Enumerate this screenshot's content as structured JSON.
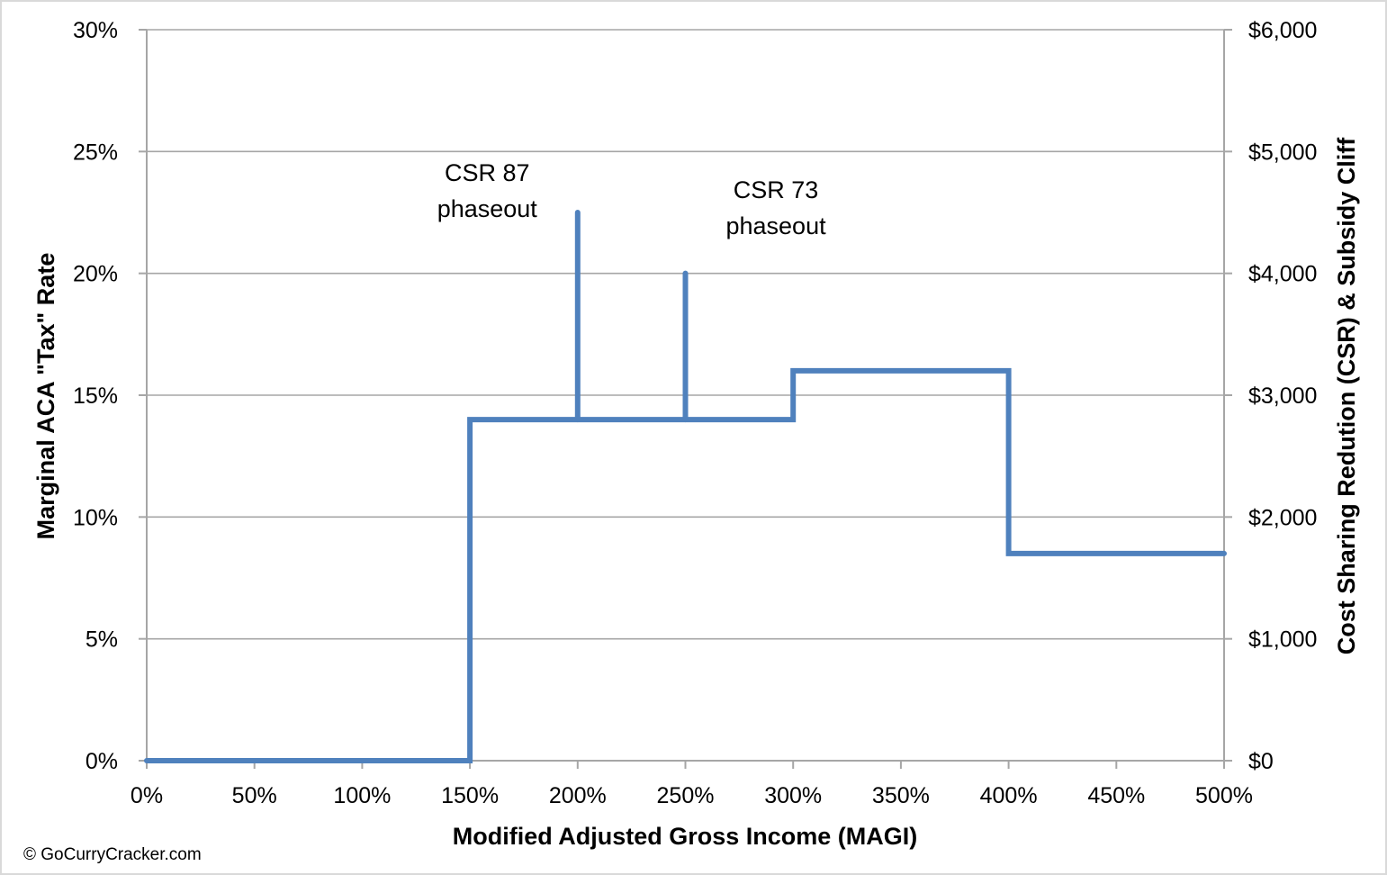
{
  "chart_data": {
    "type": "line",
    "title": "",
    "xlabel": "Modified Adjusted Gross Income (MAGI)",
    "ylabel": "Marginal ACA \"Tax\" Rate",
    "y2label": "Cost Sharing Redution (CSR) & Subsidy Cliff",
    "xlim": [
      0,
      500
    ],
    "ylim": [
      0,
      30
    ],
    "y2lim": [
      0,
      6000
    ],
    "x_ticks": [
      0,
      50,
      100,
      150,
      200,
      250,
      300,
      350,
      400,
      450,
      500
    ],
    "x_tick_labels": [
      "0%",
      "50%",
      "100%",
      "150%",
      "200%",
      "250%",
      "300%",
      "350%",
      "400%",
      "450%",
      "500%"
    ],
    "y_ticks": [
      0,
      5,
      10,
      15,
      20,
      25,
      30
    ],
    "y_tick_labels": [
      "0%",
      "5%",
      "10%",
      "15%",
      "20%",
      "25%",
      "30%"
    ],
    "y2_ticks": [
      0,
      1000,
      2000,
      3000,
      4000,
      5000,
      6000
    ],
    "y2_tick_labels": [
      "$0",
      "$1,000",
      "$2,000",
      "$3,000",
      "$4,000",
      "$5,000",
      "$6,000"
    ],
    "grid": true,
    "legend": "none",
    "color": "#4f81bd",
    "series": [
      {
        "x": [
          0,
          150,
          150,
          200,
          300,
          300,
          400,
          400,
          500
        ],
        "y": [
          0,
          0,
          14,
          14,
          14,
          16,
          16,
          8.5,
          8.5
        ]
      },
      {
        "x": [
          200,
          200
        ],
        "y": [
          14,
          22.5
        ]
      },
      {
        "x": [
          250,
          250
        ],
        "y": [
          14,
          20
        ]
      }
    ],
    "annotations": [
      {
        "lines": [
          "CSR 87",
          "phaseout"
        ],
        "x": 158,
        "y": 23.8
      },
      {
        "lines": [
          "CSR 73",
          "phaseout"
        ],
        "x": 292,
        "y": 23.1
      }
    ]
  },
  "footer": {
    "copyright": "© GoCurryCracker.com"
  }
}
